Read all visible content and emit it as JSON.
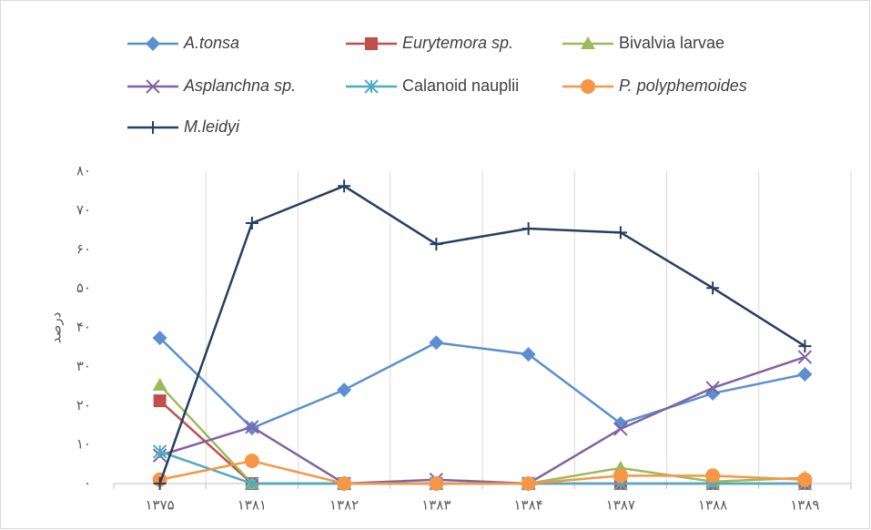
{
  "chart_data": {
    "type": "line",
    "y_label": "درصد",
    "categories": [
      "۱۳۷۵",
      "۱۳۸۱",
      "۱۳۸۲",
      "۱۳۸۳",
      "۱۳۸۴",
      "۱۳۸۷",
      "۱۳۸۸",
      "۱۳۸۹"
    ],
    "ylim": [
      0,
      80
    ],
    "yticks": [
      {
        "value": 0,
        "label": "۰"
      },
      {
        "value": 10,
        "label": "۱۰"
      },
      {
        "value": 20,
        "label": "۲۰"
      },
      {
        "value": 30,
        "label": "۳۰"
      },
      {
        "value": 40,
        "label": "۴۰"
      },
      {
        "value": 50,
        "label": "۵۰"
      },
      {
        "value": 60,
        "label": "۶۰"
      },
      {
        "value": 70,
        "label": "۷۰"
      },
      {
        "value": 80,
        "label": "۸۰"
      }
    ],
    "series": [
      {
        "name": "A.tonsa",
        "color": "#5b8fd0",
        "marker": "diamond",
        "italic": true,
        "values": [
          37.3,
          14.2,
          24,
          36.1,
          33.1,
          15.4,
          23.1,
          28
        ]
      },
      {
        "name": "Eurytemora sp.",
        "color": "#c0504d",
        "marker": "square",
        "italic": true,
        "values": [
          21.2,
          0,
          0,
          0,
          0,
          0,
          0,
          0
        ]
      },
      {
        "name": "Bivalvia larvae",
        "color": "#9bbb59",
        "marker": "triangle",
        "italic": false,
        "values": [
          25.2,
          0,
          0,
          0,
          0,
          4,
          0.5,
          1.5
        ]
      },
      {
        "name": "Asplanchna sp.",
        "color": "#8064a2",
        "marker": "x",
        "italic": true,
        "values": [
          7.2,
          14.5,
          0,
          1,
          0,
          14,
          24.5,
          32.4
        ]
      },
      {
        "name": "Calanoid nauplii",
        "color": "#4bacc6",
        "marker": "asterisk",
        "italic": false,
        "values": [
          8.2,
          0,
          0,
          0,
          0,
          0,
          0,
          0
        ]
      },
      {
        "name": "P. polyphemoides",
        "color": "#f79646",
        "marker": "circle",
        "italic": true,
        "values": [
          1,
          5.8,
          0,
          0,
          0,
          2,
          2,
          1
        ]
      },
      {
        "name": "M.leidyi",
        "color": "#243f60",
        "marker": "plus",
        "italic": true,
        "values": [
          0,
          66.7,
          76.2,
          61.3,
          65.3,
          64.3,
          50.1,
          35.2
        ]
      }
    ]
  }
}
